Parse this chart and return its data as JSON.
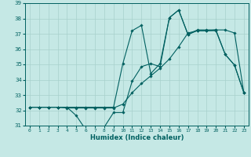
{
  "xlabel": "Humidex (Indice chaleur)",
  "xlim": [
    -0.5,
    23.5
  ],
  "ylim": [
    31,
    39
  ],
  "yticks": [
    31,
    32,
    33,
    34,
    35,
    36,
    37,
    38,
    39
  ],
  "xticks": [
    0,
    1,
    2,
    3,
    4,
    5,
    6,
    7,
    8,
    9,
    10,
    11,
    12,
    13,
    14,
    15,
    16,
    17,
    18,
    19,
    20,
    21,
    22,
    23
  ],
  "bg_color": "#c5e8e5",
  "grid_color": "#a8d0cc",
  "line_color": "#006060",
  "line1_y": [
    32.2,
    32.2,
    32.2,
    32.2,
    32.2,
    31.65,
    30.75,
    30.75,
    30.9,
    31.85,
    31.85,
    33.9,
    34.85,
    35.05,
    34.85,
    38.05,
    38.55,
    36.95,
    37.2,
    37.2,
    37.2,
    35.65,
    34.95,
    33.15
  ],
  "line2_y": [
    32.2,
    32.2,
    32.2,
    32.2,
    32.15,
    32.15,
    32.15,
    32.15,
    32.15,
    32.15,
    32.4,
    33.15,
    33.75,
    34.25,
    34.75,
    35.35,
    36.15,
    37.05,
    37.2,
    37.2,
    37.25,
    37.25,
    37.05,
    33.15
  ],
  "line3_y": [
    32.2,
    32.2,
    32.2,
    32.2,
    32.2,
    32.2,
    32.2,
    32.2,
    32.2,
    32.2,
    35.05,
    37.2,
    37.55,
    34.4,
    35.05,
    38.05,
    38.55,
    36.95,
    37.25,
    37.25,
    37.25,
    35.65,
    34.95,
    33.15
  ]
}
